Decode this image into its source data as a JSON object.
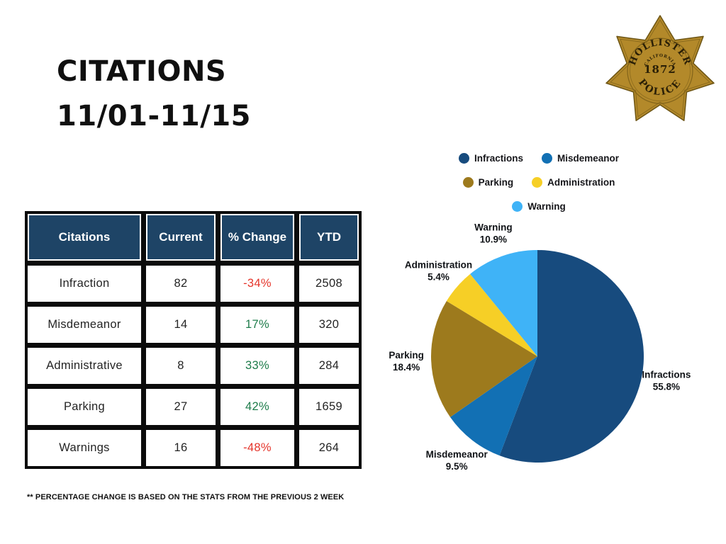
{
  "slide": {
    "title_line1": "CITATIONS",
    "title_line2": "11/01-11/15",
    "background": "#ffffff"
  },
  "badge": {
    "city": "HOLLISTER",
    "state": "CALIFORNIA",
    "year": "1872",
    "department": "POLICE",
    "gold": "#b3892a",
    "outline": "#6d5515",
    "detail": "#7d6018",
    "text_color": "#2a1f06"
  },
  "table": {
    "header_bg": "#1E4466",
    "header_text_color": "#ffffff",
    "columns": [
      "Citations",
      "Current",
      "% Change",
      "YTD"
    ],
    "rows": [
      {
        "citation": "Infraction",
        "current": "82",
        "change": "-34%",
        "trend": "negative",
        "ytd": "2508"
      },
      {
        "citation": "Misdemeanor",
        "current": "14",
        "change": "17%",
        "trend": "positive",
        "ytd": "320"
      },
      {
        "citation": "Administrative",
        "current": "8",
        "change": "33%",
        "trend": "positive",
        "ytd": "284"
      },
      {
        "citation": "Parking",
        "current": "27",
        "change": "42%",
        "trend": "positive",
        "ytd": "1659"
      },
      {
        "citation": "Warnings",
        "current": "16",
        "change": "-48%",
        "trend": "negative",
        "ytd": "264"
      }
    ],
    "trend_colors": {
      "negative": "#E5352B",
      "positive": "#1E7C4B"
    },
    "footnote": "** PERCENTAGE CHANGE IS BASED ON THE STATS FROM THE PREVIOUS 2 WEEK"
  },
  "chart_data": {
    "type": "pie",
    "title": "",
    "labels": [
      "Infractions",
      "Misdemeanor",
      "Parking",
      "Administration",
      "Warning"
    ],
    "values": [
      55.8,
      9.5,
      18.4,
      5.4,
      10.9
    ],
    "value_labels": [
      "55.8%",
      "9.5%",
      "18.4%",
      "5.4%",
      "10.9%"
    ],
    "colors": [
      "#174B7E",
      "#1270B4",
      "#9D7A1D",
      "#F6CF26",
      "#3FB3F7"
    ],
    "start_angle_deg": 0,
    "direction": "clockwise",
    "legend_position": "top",
    "legend_rows": [
      [
        "Infractions",
        "Misdemeanor"
      ],
      [
        "Parking",
        "Administration"
      ],
      [
        "Warning"
      ]
    ]
  }
}
